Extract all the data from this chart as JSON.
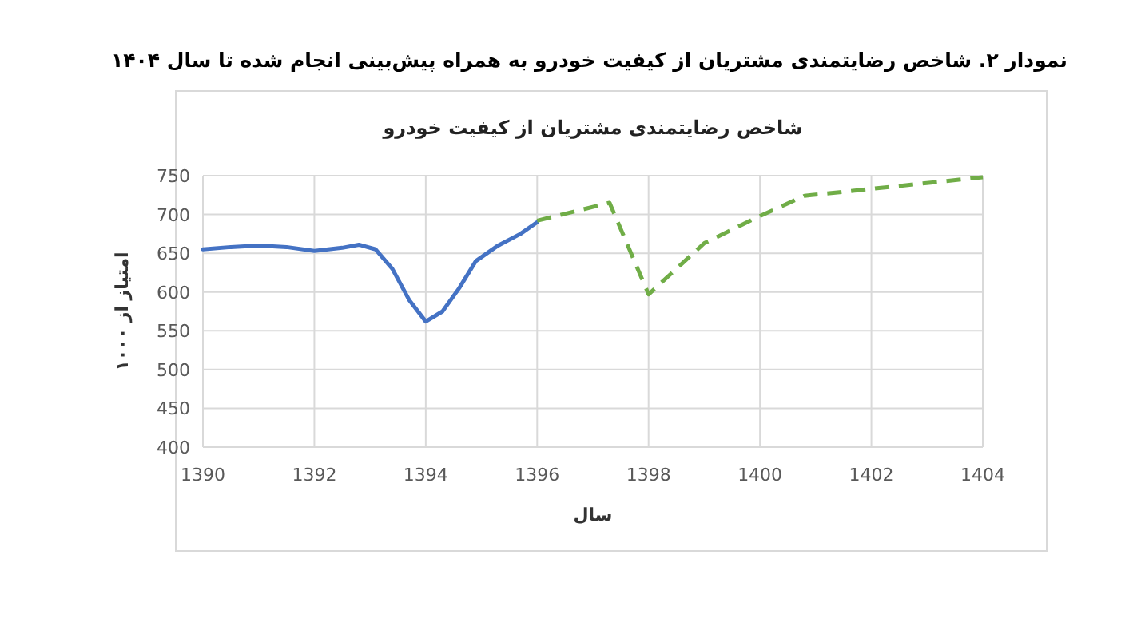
{
  "chart_data": {
    "type": "line",
    "title": "نمودار ۲. شاخص رضایتمندی مشتریان از کیفیت خودرو به همراه پیش‌بینی انجام شده تا سال ۱۴۰۴",
    "subtitle": "شاخص رضایتمندی مشتریان از کیفیت خودرو",
    "xlabel": "سال",
    "ylabel": "امتیاز از ۱۰۰۰",
    "xlim": [
      1390,
      1404
    ],
    "xticks": [
      1390,
      1392,
      1394,
      1396,
      1398,
      1400,
      1402,
      1404
    ],
    "ylim": [
      400,
      750
    ],
    "yticks": [
      400,
      450,
      500,
      550,
      600,
      650,
      700,
      750
    ],
    "grid": true,
    "series": [
      {
        "color": "#4472c4",
        "line_style": "solid",
        "x": [
          1390,
          1390.5,
          1391,
          1391.5,
          1392,
          1392.5,
          1392.8,
          1393.1,
          1393.4,
          1393.7,
          1394,
          1394.3,
          1394.6,
          1394.9,
          1395.3,
          1395.7,
          1396
        ],
        "values": [
          655,
          658,
          660,
          658,
          653,
          657,
          661,
          655,
          630,
          590,
          562,
          575,
          605,
          640,
          660,
          675,
          690
        ]
      },
      {
        "color": "#70ad47",
        "line_style": "dashed",
        "x": [
          1396,
          1397.3,
          1398,
          1399,
          1400,
          1400.8,
          1402,
          1404
        ],
        "values": [
          692,
          715,
          597,
          663,
          698,
          724,
          733,
          748
        ]
      }
    ]
  }
}
